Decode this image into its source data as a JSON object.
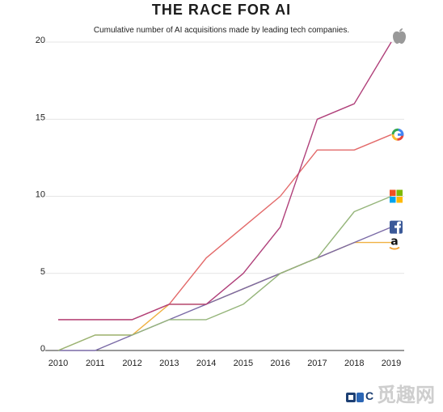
{
  "chart_data": {
    "type": "line",
    "title": "THE RACE FOR AI",
    "subtitle": "Cumulative number of AI acquisitions made by leading tech companies.",
    "xlabel": "",
    "ylabel": "",
    "categories": [
      "2010",
      "2011",
      "2012",
      "2013",
      "2014",
      "2015",
      "2016",
      "2017",
      "2018",
      "2019"
    ],
    "y_ticks": [
      "0",
      "5",
      "10",
      "15",
      "20"
    ],
    "ylim": [
      0,
      20
    ],
    "grid": "horizontal",
    "legend": "icons at line ends (right)",
    "series": [
      {
        "icon": "apple-icon",
        "color": "#b0407a",
        "values": [
          2,
          2,
          2,
          3,
          3,
          5,
          8,
          15,
          16,
          20
        ]
      },
      {
        "icon": "google-icon",
        "color": "#e36a6a",
        "values": [
          2,
          2,
          2,
          3,
          6,
          8,
          10,
          13,
          13,
          14
        ]
      },
      {
        "icon": "microsoft-icon",
        "color": "#95b57a",
        "values": [
          0,
          1,
          1,
          2,
          2,
          3,
          5,
          6,
          9,
          10
        ]
      },
      {
        "icon": "facebook-icon",
        "color": "#7a6aa6",
        "values": [
          0,
          0,
          1,
          2,
          3,
          4,
          5,
          6,
          7,
          8
        ]
      },
      {
        "icon": "amazon-icon",
        "color": "#f0b142",
        "values": [
          0,
          1,
          1,
          3,
          3,
          4,
          5,
          6,
          7,
          7
        ]
      }
    ]
  },
  "source": {
    "text": "C",
    "watermark": "觅趣网"
  }
}
